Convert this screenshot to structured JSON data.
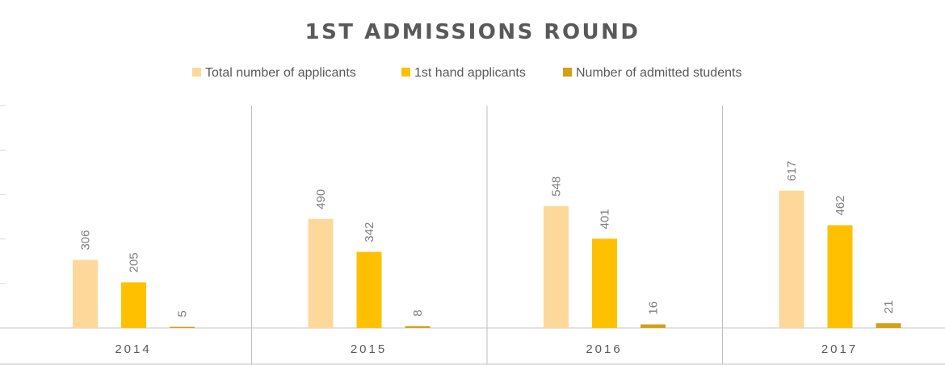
{
  "chart_data": {
    "type": "bar",
    "title": "1ST ADMISSIONS  ROUND",
    "categories": [
      "2014",
      "2015",
      "2016",
      "2017"
    ],
    "series": [
      {
        "name": "Total number of applicants",
        "color": "#FDD89A",
        "values": [
          306,
          490,
          548,
          617
        ]
      },
      {
        "name": "1st hand applicants",
        "color": "#FFC000",
        "values": [
          205,
          342,
          401,
          462
        ]
      },
      {
        "name": "Number of admitted students",
        "color": "#D4A017",
        "values": [
          5,
          8,
          16,
          21
        ]
      }
    ],
    "ylim": [
      0,
      1000
    ],
    "grid": false,
    "legend": "top-center",
    "data_labels": true,
    "colors": {
      "title": "#595959",
      "text": "#595959",
      "data_label": "#7f7f7f",
      "axis": "#d9d9d9",
      "separator": "#bfbfbf"
    }
  }
}
